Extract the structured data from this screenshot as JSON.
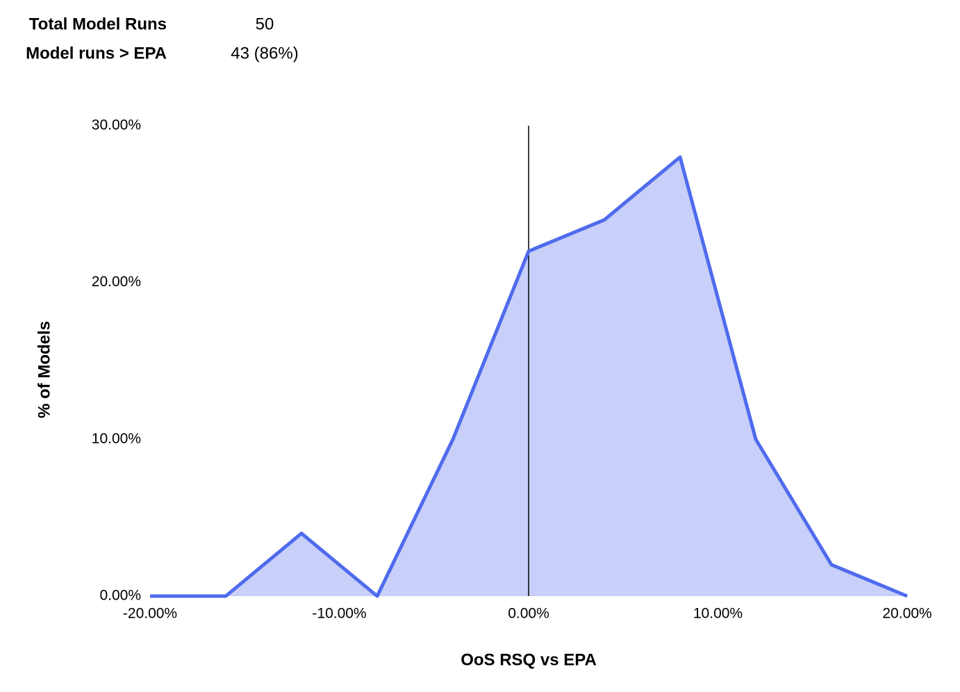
{
  "stats": [
    {
      "label": "Total Model Runs",
      "value": 50
    },
    {
      "label": "Model runs > EPA",
      "value": "43 (86%)"
    }
  ],
  "chart_data": {
    "type": "area",
    "x_label": "OoS RSQ vs EPA",
    "y_label": "% of Models",
    "x": [
      -20,
      -16,
      -12,
      -8,
      -4,
      0,
      4,
      8,
      12,
      16,
      20
    ],
    "series": [
      {
        "name": "% of Models",
        "color": "#4f6bed",
        "fill": "#c8cff8",
        "values": [
          0,
          0,
          4,
          0,
          10,
          22,
          24,
          28,
          10,
          2,
          0
        ]
      }
    ],
    "xlim": [
      -20,
      20
    ],
    "xticks": [
      {
        "value": -20,
        "label": "-20.00%"
      },
      {
        "value": -10,
        "label": "-10.00%"
      },
      {
        "value": 0,
        "label": "0.00%"
      },
      {
        "value": 10,
        "label": "10.00%"
      },
      {
        "value": 20,
        "label": "20.00%"
      }
    ],
    "ylim": [
      0,
      30
    ],
    "yticks": [
      {
        "value": 0,
        "label": "0.00%"
      },
      {
        "value": 10,
        "label": "10.00%"
      },
      {
        "value": 20,
        "label": "20.00%"
      },
      {
        "value": 30,
        "label": "30.00%"
      }
    ],
    "vline_x": 0,
    "grid": false,
    "legend": false
  }
}
